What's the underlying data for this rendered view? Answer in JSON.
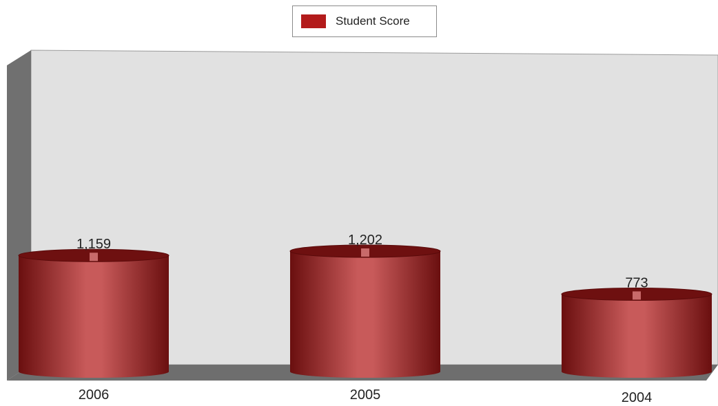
{
  "chart_data": {
    "type": "bar",
    "categories": [
      "2006",
      "2005",
      "2004"
    ],
    "series": [
      {
        "name": "Student Score",
        "values": [
          1159,
          1202,
          773
        ],
        "value_labels": [
          "1,159",
          "1,202",
          "773"
        ],
        "color": "#b31b1b"
      }
    ],
    "title": "",
    "xlabel": "",
    "ylabel": "",
    "ylim": [
      0,
      2600
    ],
    "legend": "top-center",
    "grid": false,
    "style": "3d-cylinder"
  },
  "colors": {
    "plot_back": "#e1e1e1",
    "left_wall": "#707070",
    "floor": "#6e6e6e",
    "bar": "#b31b1b",
    "bar_top": "#6e1010"
  }
}
